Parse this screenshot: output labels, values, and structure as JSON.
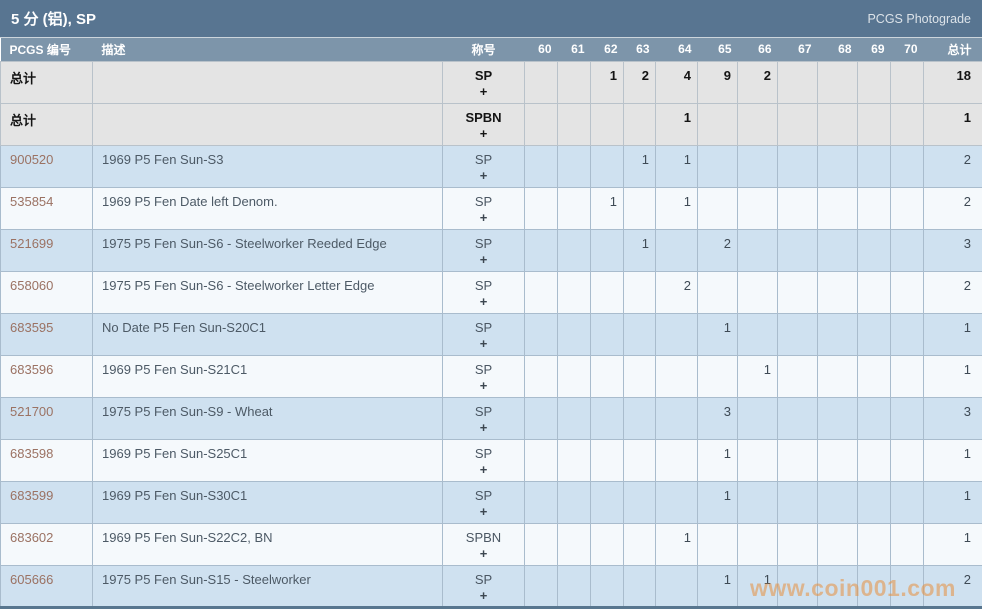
{
  "title_bar": {
    "title": "5 分 (铝), SP",
    "right_link": "PCGS Photograde"
  },
  "table": {
    "columns": {
      "code": "PCGS 编号",
      "description": "描述",
      "designation": "称号",
      "grades": [
        "60",
        "61",
        "62",
        "63",
        "64",
        "65",
        "66",
        "67",
        "68",
        "69",
        "70"
      ],
      "total": "总计"
    },
    "rows": [
      {
        "type": "total",
        "code": "总计",
        "description": "",
        "designation": "SP",
        "plus": "+",
        "grades": [
          "",
          "",
          "1",
          "2",
          "4",
          "9",
          "2",
          "",
          "",
          "",
          ""
        ],
        "total": "18"
      },
      {
        "type": "total",
        "code": "总计",
        "description": "",
        "designation": "SPBN",
        "plus": "+",
        "grades": [
          "",
          "",
          "",
          "",
          "1",
          "",
          "",
          "",
          "",
          "",
          ""
        ],
        "total": "1"
      },
      {
        "type": "data",
        "code": "900520",
        "description": "1969 P5 Fen Sun-S3",
        "designation": "SP",
        "plus": "+",
        "grades": [
          "",
          "",
          "",
          "1",
          "1",
          "",
          "",
          "",
          "",
          "",
          ""
        ],
        "total": "2"
      },
      {
        "type": "data",
        "code": "535854",
        "description": "1969 P5 Fen Date left Denom.",
        "designation": "SP",
        "plus": "+",
        "grades": [
          "",
          "",
          "1",
          "",
          "1",
          "",
          "",
          "",
          "",
          "",
          ""
        ],
        "total": "2"
      },
      {
        "type": "data",
        "code": "521699",
        "description": "1975 P5 Fen Sun-S6 - Steelworker Reeded Edge",
        "designation": "SP",
        "plus": "+",
        "grades": [
          "",
          "",
          "",
          "1",
          "",
          "2",
          "",
          "",
          "",
          "",
          ""
        ],
        "total": "3"
      },
      {
        "type": "data",
        "code": "658060",
        "description": "1975 P5 Fen Sun-S6 - Steelworker Letter Edge",
        "designation": "SP",
        "plus": "+",
        "grades": [
          "",
          "",
          "",
          "",
          "2",
          "",
          "",
          "",
          "",
          "",
          ""
        ],
        "total": "2"
      },
      {
        "type": "data",
        "code": "683595",
        "description": "No Date P5 Fen Sun-S20C1",
        "designation": "SP",
        "plus": "+",
        "grades": [
          "",
          "",
          "",
          "",
          "",
          "1",
          "",
          "",
          "",
          "",
          ""
        ],
        "total": "1"
      },
      {
        "type": "data",
        "code": "683596",
        "description": "1969 P5 Fen Sun-S21C1",
        "designation": "SP",
        "plus": "+",
        "grades": [
          "",
          "",
          "",
          "",
          "",
          "",
          "1",
          "",
          "",
          "",
          ""
        ],
        "total": "1"
      },
      {
        "type": "data",
        "code": "521700",
        "description": "1975 P5 Fen Sun-S9 - Wheat",
        "designation": "SP",
        "plus": "+",
        "grades": [
          "",
          "",
          "",
          "",
          "",
          "3",
          "",
          "",
          "",
          "",
          ""
        ],
        "total": "3"
      },
      {
        "type": "data",
        "code": "683598",
        "description": "1969 P5 Fen Sun-S25C1",
        "designation": "SP",
        "plus": "+",
        "grades": [
          "",
          "",
          "",
          "",
          "",
          "1",
          "",
          "",
          "",
          "",
          ""
        ],
        "total": "1"
      },
      {
        "type": "data",
        "code": "683599",
        "description": "1969 P5 Fen Sun-S30C1",
        "designation": "SP",
        "plus": "+",
        "grades": [
          "",
          "",
          "",
          "",
          "",
          "1",
          "",
          "",
          "",
          "",
          ""
        ],
        "total": "1"
      },
      {
        "type": "data",
        "code": "683602",
        "description": "1969 P5 Fen Sun-S22C2, BN",
        "designation": "SPBN",
        "plus": "+",
        "grades": [
          "",
          "",
          "",
          "",
          "1",
          "",
          "",
          "",
          "",
          "",
          ""
        ],
        "total": "1"
      },
      {
        "type": "data",
        "code": "605666",
        "description": "1975 P5 Fen Sun-S15 - Steelworker",
        "designation": "SP",
        "plus": "+",
        "grades": [
          "",
          "",
          "",
          "",
          "",
          "1",
          "1",
          "",
          "",
          "",
          ""
        ],
        "total": "2"
      }
    ]
  },
  "watermark": {
    "text": "www.coin001.com",
    "color": "#e7913f"
  },
  "colors": {
    "title_bar_bg": "#587591",
    "column_header_bg": "#7d95aa",
    "row_blue_bg": "#cfe1f0",
    "row_light_bg": "#f5f9fc",
    "total_row_bg": "#e4e4e4",
    "cell_border": "#a9bccd",
    "pcgs_number_link": "#9b7263",
    "bottom_bar": "#58768f"
  }
}
